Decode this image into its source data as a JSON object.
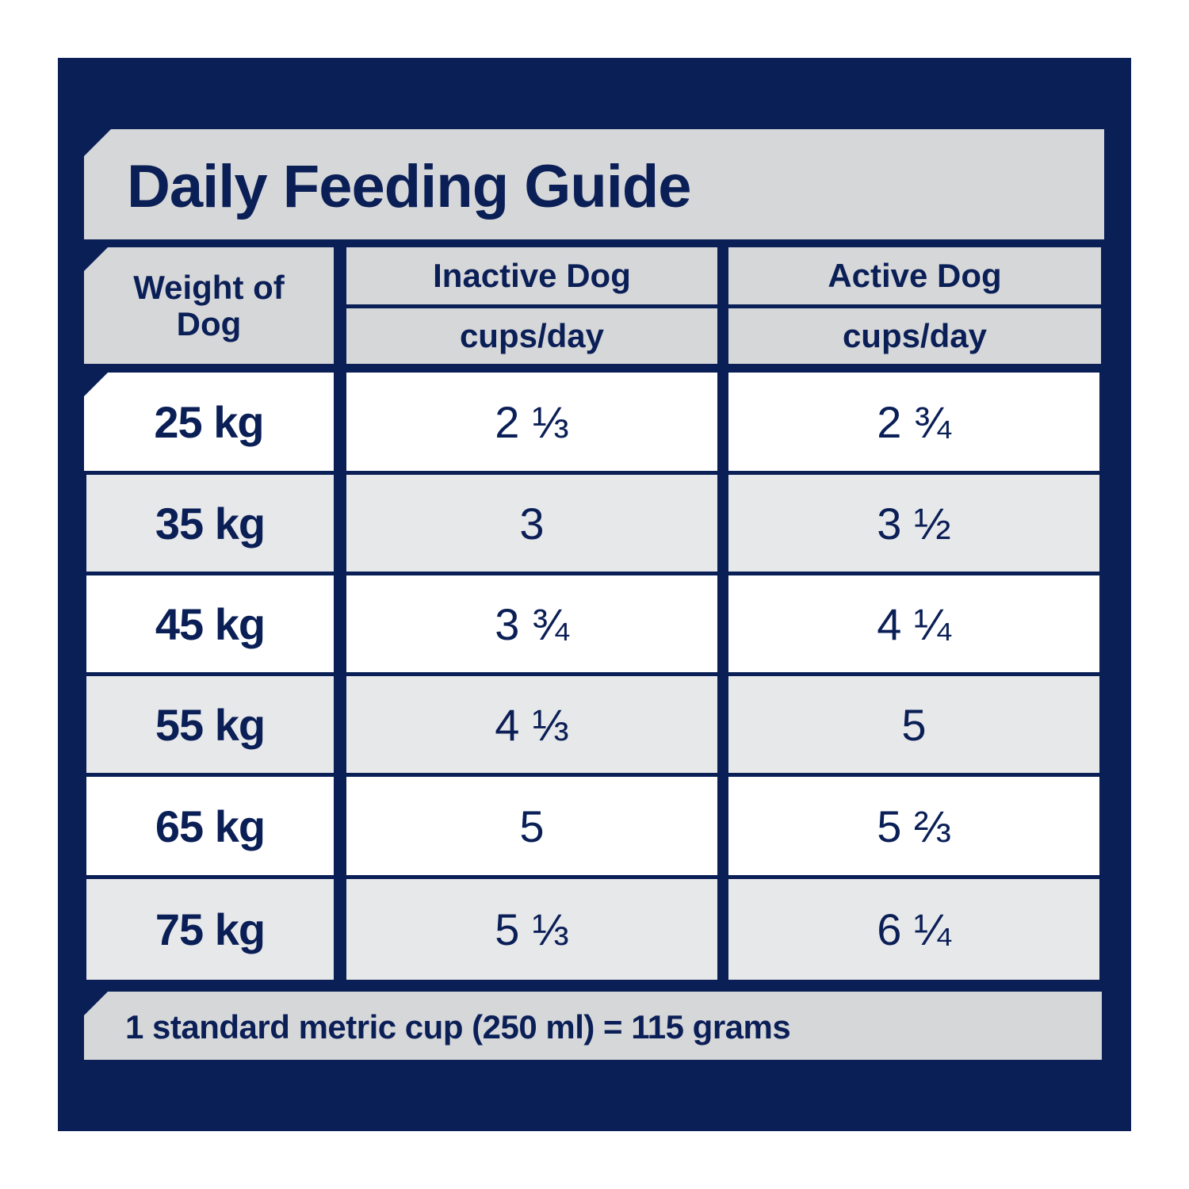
{
  "title": "Daily Feeding Guide",
  "header": {
    "weight_label": "Weight of Dog",
    "inactive_label": "Inactive Dog",
    "inactive_unit": "cups/day",
    "active_label": "Active Dog",
    "active_unit": "cups/day"
  },
  "rows": [
    {
      "weight": "25 kg",
      "inactive": "2 ⅓",
      "active": "2 ¾"
    },
    {
      "weight": "35 kg",
      "inactive": "3",
      "active": "3 ½"
    },
    {
      "weight": "45 kg",
      "inactive": "3 ¾",
      "active": "4 ¼"
    },
    {
      "weight": "55 kg",
      "inactive": "4 ⅓",
      "active": "5"
    },
    {
      "weight": "65 kg",
      "inactive": "5",
      "active": "5 ⅔"
    },
    {
      "weight": "75 kg",
      "inactive": "5 ⅓",
      "active": "6 ¼"
    }
  ],
  "footer": "1 standard metric cup (250 ml) = 115 grams",
  "colors": {
    "navy": "#0b1f57",
    "header_grey": "#d6d7d9",
    "row_grey": "#e7e8ea",
    "row_white": "#ffffff"
  }
}
